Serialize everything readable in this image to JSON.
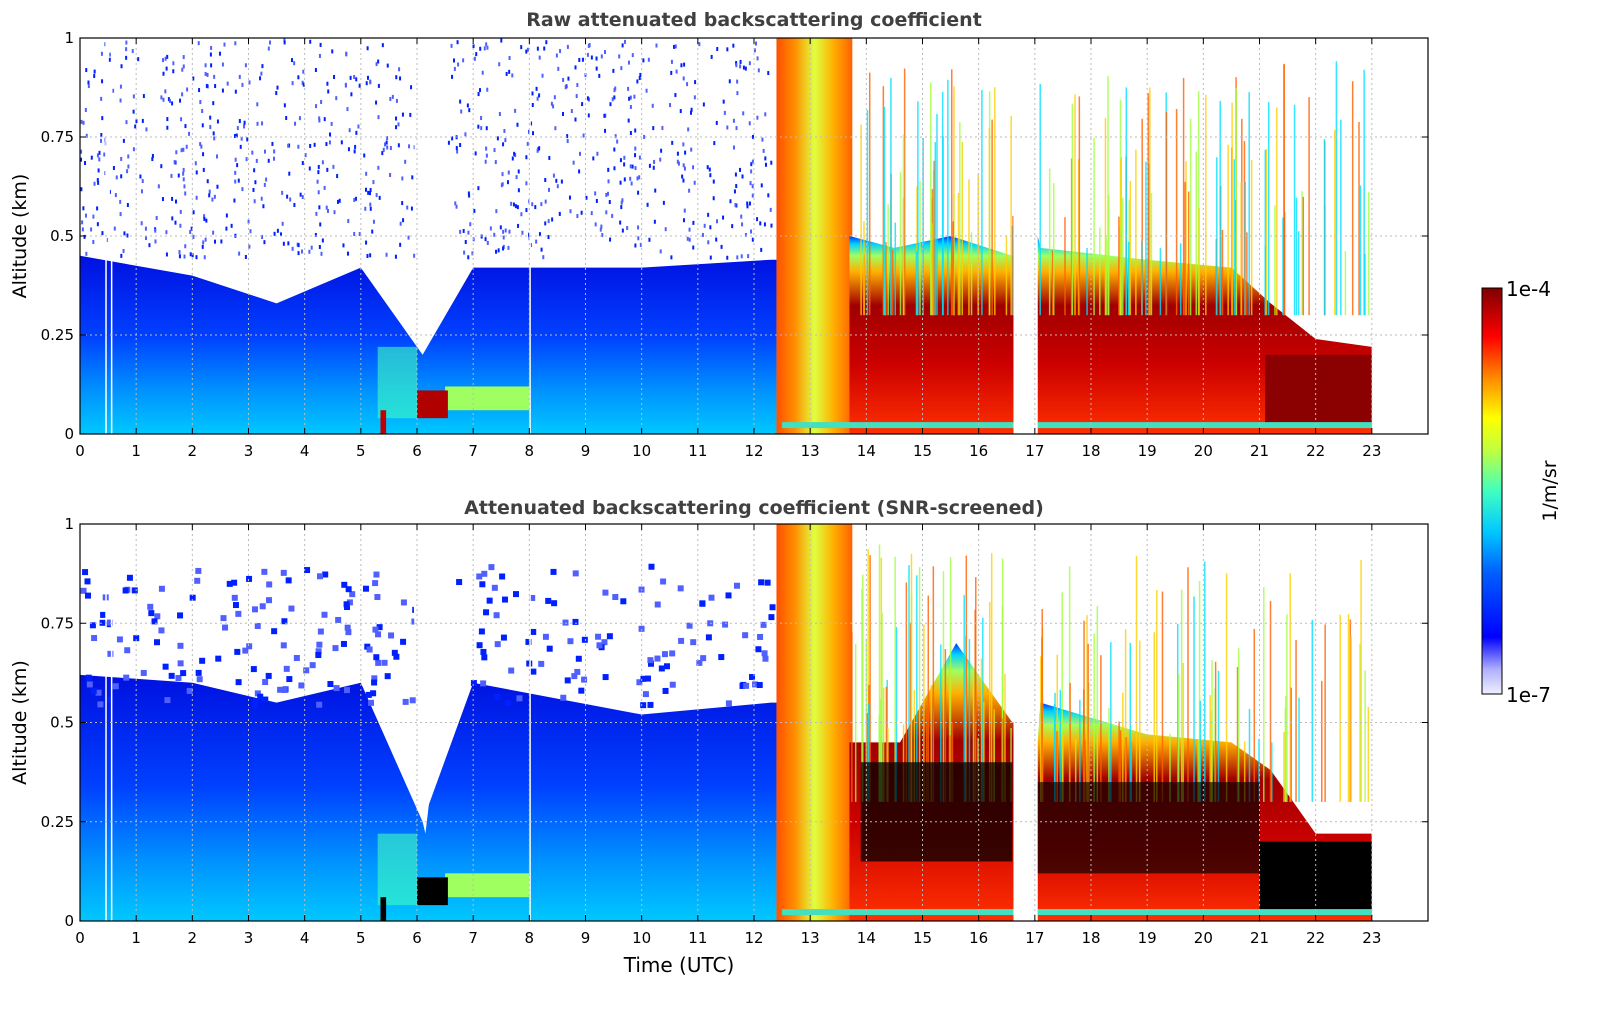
{
  "chart_data": [
    {
      "type": "heatmap",
      "title": "Raw attenuated backscattering coefficient",
      "xlabel": "",
      "ylabel": "Altitude (km)",
      "xlim": [
        0,
        24
      ],
      "ylim": [
        0,
        1
      ],
      "x_ticks": [
        0,
        1,
        2,
        3,
        4,
        5,
        6,
        7,
        8,
        9,
        10,
        11,
        12,
        13,
        14,
        15,
        16,
        17,
        18,
        19,
        20,
        21,
        22,
        23
      ],
      "y_ticks": [
        0,
        0.25,
        0.5,
        0.75,
        1
      ],
      "y_tick_labels": [
        "0",
        "0.25",
        "0.5",
        "0.75",
        "1"
      ],
      "grid": true,
      "screened": false,
      "data_gaps_hours": [
        [
          16.62,
          17.05
        ],
        [
          23.0,
          24.0
        ]
      ],
      "layer_top_km": [
        {
          "x": 0,
          "y": 0.45
        },
        {
          "x": 2,
          "y": 0.4
        },
        {
          "x": 3.5,
          "y": 0.33
        },
        {
          "x": 5,
          "y": 0.42
        },
        {
          "x": 6.1,
          "y": 0.2
        },
        {
          "x": 7,
          "y": 0.42
        },
        {
          "x": 10,
          "y": 0.42
        },
        {
          "x": 12.3,
          "y": 0.44
        },
        {
          "x": 12.5,
          "y": 1.0
        },
        {
          "x": 13.6,
          "y": 1.0
        },
        {
          "x": 14.5,
          "y": 0.47
        },
        {
          "x": 15.5,
          "y": 0.5
        },
        {
          "x": 16.6,
          "y": 0.45
        },
        {
          "x": 17.1,
          "y": 0.47
        },
        {
          "x": 19,
          "y": 0.44
        },
        {
          "x": 20.5,
          "y": 0.42
        },
        {
          "x": 21.2,
          "y": 0.33
        },
        {
          "x": 22,
          "y": 0.24
        },
        {
          "x": 23,
          "y": 0.22
        }
      ]
    },
    {
      "type": "heatmap",
      "title": "Attenuated backscattering coefficient (SNR-screened)",
      "xlabel": "Time (UTC)",
      "ylabel": "Altitude (km)",
      "xlim": [
        0,
        24
      ],
      "ylim": [
        0,
        1
      ],
      "x_ticks": [
        0,
        1,
        2,
        3,
        4,
        5,
        6,
        7,
        8,
        9,
        10,
        11,
        12,
        13,
        14,
        15,
        16,
        17,
        18,
        19,
        20,
        21,
        22,
        23
      ],
      "y_ticks": [
        0,
        0.25,
        0.5,
        0.75,
        1
      ],
      "y_tick_labels": [
        "0",
        "0.25",
        "0.5",
        "0.75",
        "1"
      ],
      "grid": true,
      "screened": true,
      "data_gaps_hours": [
        [
          16.62,
          17.05
        ],
        [
          23.0,
          24.0
        ]
      ],
      "layer_top_km": [
        {
          "x": 0,
          "y": 0.62
        },
        {
          "x": 2,
          "y": 0.6
        },
        {
          "x": 3.5,
          "y": 0.55
        },
        {
          "x": 5,
          "y": 0.6
        },
        {
          "x": 6.1,
          "y": 0.25
        },
        {
          "x": 7,
          "y": 0.6
        },
        {
          "x": 10,
          "y": 0.52
        },
        {
          "x": 12.3,
          "y": 0.55
        },
        {
          "x": 12.5,
          "y": 1.0
        },
        {
          "x": 13.6,
          "y": 1.0
        },
        {
          "x": 14.6,
          "y": 0.45
        },
        {
          "x": 15.6,
          "y": 0.7
        },
        {
          "x": 16.6,
          "y": 0.5
        },
        {
          "x": 17.1,
          "y": 0.55
        },
        {
          "x": 19,
          "y": 0.47
        },
        {
          "x": 20.5,
          "y": 0.45
        },
        {
          "x": 21.2,
          "y": 0.38
        },
        {
          "x": 22,
          "y": 0.22
        },
        {
          "x": 23,
          "y": 0.22
        }
      ]
    }
  ],
  "colorbar": {
    "max_label": "1e-4",
    "min_label": "1e-7",
    "unit_label": "1/m/sr",
    "colormap": "jet",
    "colors": [
      "#ffffff",
      "#0000ff",
      "#00aaff",
      "#00ffcc",
      "#aaff44",
      "#ffff00",
      "#ff8800",
      "#ff0000",
      "#8b0000"
    ]
  }
}
